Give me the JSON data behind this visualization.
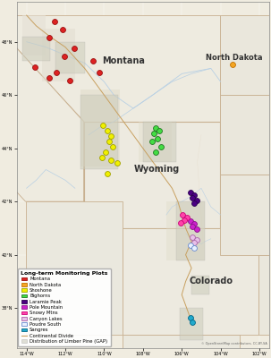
{
  "figsize": [
    3.03,
    4.0
  ],
  "dpi": 100,
  "map_extent": [
    -114.5,
    -101.5,
    36.5,
    49.5
  ],
  "bg_color": "#f0ece0",
  "water_color": "#b8d4e8",
  "land_color": "#f0ece0",
  "urban_color": "#e8e0d0",
  "state_border_color": "#c8b090",
  "grid_color": "#d0c8b8",
  "state_labels": [
    {
      "name": "Montana",
      "lon": -109.0,
      "lat": 47.3,
      "fontsize": 7,
      "fontweight": "bold"
    },
    {
      "name": "North Dakota",
      "lon": -103.3,
      "lat": 47.4,
      "fontsize": 6,
      "fontweight": "bold"
    },
    {
      "name": "Wyoming",
      "lon": -107.3,
      "lat": 43.2,
      "fontsize": 7,
      "fontweight": "bold"
    },
    {
      "name": "Colorado",
      "lon": -104.5,
      "lat": 39.0,
      "fontsize": 7,
      "fontweight": "bold"
    }
  ],
  "monitoring_groups": [
    {
      "name": "Montana",
      "facecolor": "#dd2222",
      "edgecolor": "#991111",
      "size": 18,
      "zorder": 6,
      "points": [
        [
          -112.55,
          48.75
        ],
        [
          -112.15,
          48.45
        ],
        [
          -112.85,
          48.15
        ],
        [
          -111.55,
          47.75
        ],
        [
          -112.05,
          47.45
        ],
        [
          -110.55,
          47.3
        ],
        [
          -113.55,
          47.05
        ],
        [
          -112.45,
          46.85
        ],
        [
          -112.85,
          46.65
        ],
        [
          -111.75,
          46.55
        ],
        [
          -110.25,
          46.85
        ]
      ]
    },
    {
      "name": "North Dakota",
      "facecolor": "#f5a623",
      "edgecolor": "#c07000",
      "size": 18,
      "zorder": 6,
      "points": [
        [
          -103.4,
          47.15
        ]
      ]
    },
    {
      "name": "Shoshone",
      "facecolor": "#f0f000",
      "edgecolor": "#a0a000",
      "size": 18,
      "zorder": 6,
      "points": [
        [
          -110.05,
          44.85
        ],
        [
          -109.85,
          44.65
        ],
        [
          -109.65,
          44.45
        ],
        [
          -109.75,
          44.25
        ],
        [
          -109.55,
          44.05
        ],
        [
          -109.95,
          43.85
        ],
        [
          -110.1,
          43.65
        ],
        [
          -109.65,
          43.55
        ],
        [
          -109.35,
          43.45
        ],
        [
          -109.85,
          43.05
        ]
      ]
    },
    {
      "name": "Bighorns",
      "facecolor": "#44dd44",
      "edgecolor": "#227722",
      "size": 18,
      "zorder": 6,
      "points": [
        [
          -107.35,
          44.75
        ],
        [
          -107.15,
          44.65
        ],
        [
          -107.45,
          44.55
        ],
        [
          -107.25,
          44.35
        ],
        [
          -107.55,
          44.25
        ],
        [
          -107.05,
          44.05
        ],
        [
          -107.35,
          43.85
        ]
      ]
    },
    {
      "name": "Laramie Peak",
      "facecolor": "#4b0082",
      "edgecolor": "#2a0050",
      "size": 18,
      "zorder": 6,
      "points": [
        [
          -105.55,
          42.35
        ],
        [
          -105.35,
          42.25
        ],
        [
          -105.45,
          42.15
        ],
        [
          -105.25,
          42.05
        ],
        [
          -105.35,
          41.95
        ]
      ]
    },
    {
      "name": "Pole Mountain",
      "facecolor": "#cc22cc",
      "edgecolor": "#881188",
      "size": 18,
      "zorder": 6,
      "points": [
        [
          -105.55,
          41.25
        ],
        [
          -105.35,
          41.15
        ],
        [
          -105.45,
          41.05
        ],
        [
          -105.25,
          40.95
        ]
      ]
    },
    {
      "name": "Snowy Mtns",
      "facecolor": "#ff44aa",
      "edgecolor": "#cc0077",
      "size": 18,
      "zorder": 6,
      "points": [
        [
          -105.95,
          41.5
        ],
        [
          -105.75,
          41.4
        ],
        [
          -105.85,
          41.3
        ],
        [
          -106.05,
          41.2
        ]
      ]
    },
    {
      "name": "Canyon Lakes",
      "facecolor": "#e8c0e8",
      "edgecolor": "#aa66aa",
      "size": 18,
      "zorder": 6,
      "points": [
        [
          -105.45,
          40.65
        ],
        [
          -105.25,
          40.55
        ],
        [
          -105.35,
          40.45
        ]
      ]
    },
    {
      "name": "Poudre South",
      "facecolor": "#e8f0ff",
      "edgecolor": "#6688cc",
      "size": 18,
      "zorder": 6,
      "points": [
        [
          -105.55,
          40.35
        ],
        [
          -105.35,
          40.25
        ]
      ]
    },
    {
      "name": "Sangres",
      "facecolor": "#22aacc",
      "edgecolor": "#006688",
      "size": 18,
      "zorder": 6,
      "points": [
        [
          -105.55,
          37.65
        ],
        [
          -105.45,
          37.45
        ]
      ]
    }
  ],
  "legend_title": "Long-term Monitoring Plots",
  "legend_items": [
    {
      "label": "Montana",
      "facecolor": "#dd2222",
      "edgecolor": "#991111"
    },
    {
      "label": "North Dakota",
      "facecolor": "#f5a623",
      "edgecolor": "#c07000"
    },
    {
      "label": "Shoshone",
      "facecolor": "#f0f000",
      "edgecolor": "#a0a000"
    },
    {
      "label": "Bighorns",
      "facecolor": "#44dd44",
      "edgecolor": "#227722"
    },
    {
      "label": "Laramie Peak",
      "facecolor": "#4b0082",
      "edgecolor": "#2a0050"
    },
    {
      "label": "Pole Mountain",
      "facecolor": "#cc22cc",
      "edgecolor": "#881188"
    },
    {
      "label": "Snowy Mtns",
      "facecolor": "#ff44aa",
      "edgecolor": "#cc0077"
    },
    {
      "label": "Canyon Lakes",
      "facecolor": "#e8c0e8",
      "edgecolor": "#aa66aa"
    },
    {
      "label": "Poudre South",
      "facecolor": "#e8f0ff",
      "edgecolor": "#6688cc"
    },
    {
      "label": "Sangres",
      "facecolor": "#22aacc",
      "edgecolor": "#006688"
    }
  ],
  "tick_lons": [
    -114,
    -112,
    -110,
    -108,
    -106,
    -104,
    -102
  ],
  "tick_lats": [
    38,
    40,
    42,
    44,
    46,
    48
  ],
  "continental_divide_color": "#c8a060",
  "pine_color": "#ccccbb",
  "pine_edge_color": "#aaaaaa",
  "attribution": "© OpenStreetMap contributors, CC-BY-SA"
}
